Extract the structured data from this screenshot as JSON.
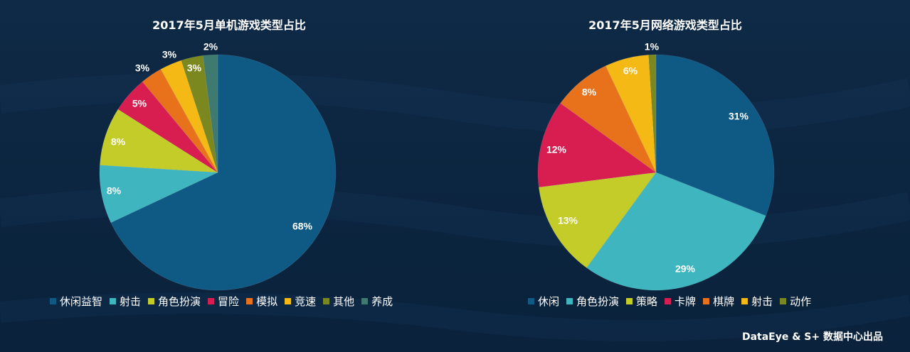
{
  "footer": "DataEye & S+ 数据中心出品",
  "chart_data": [
    {
      "type": "pie",
      "title": "2017年5月单机游戏类型占比",
      "categories": [
        "休闲益智",
        "射击",
        "角色扮演",
        "冒险",
        "模拟",
        "竞速",
        "其他",
        "养成"
      ],
      "values": [
        68,
        8,
        8,
        5,
        3,
        3,
        3,
        2
      ],
      "labels": [
        "68%",
        "8%",
        "8%",
        "5%",
        "3%",
        "3%",
        "3%",
        "2%"
      ],
      "colors": [
        "#0f5a85",
        "#3fb6bf",
        "#c3cc28",
        "#d81d50",
        "#e8711b",
        "#f4b914",
        "#7b871f",
        "#3f7a70"
      ],
      "legend": "bottom"
    },
    {
      "type": "pie",
      "title": "2017年5月网络游戏类型占比",
      "categories": [
        "休闲",
        "角色扮演",
        "策略",
        "卡牌",
        "棋牌",
        "射击",
        "动作"
      ],
      "values": [
        31,
        29,
        13,
        12,
        8,
        6,
        1
      ],
      "labels": [
        "31%",
        "29%",
        "13%",
        "12%",
        "8%",
        "6%",
        "1%"
      ],
      "colors": [
        "#0f5a85",
        "#3fb6bf",
        "#c3cc28",
        "#d81d50",
        "#e8711b",
        "#f4b914",
        "#7b871f"
      ],
      "legend": "bottom"
    }
  ]
}
